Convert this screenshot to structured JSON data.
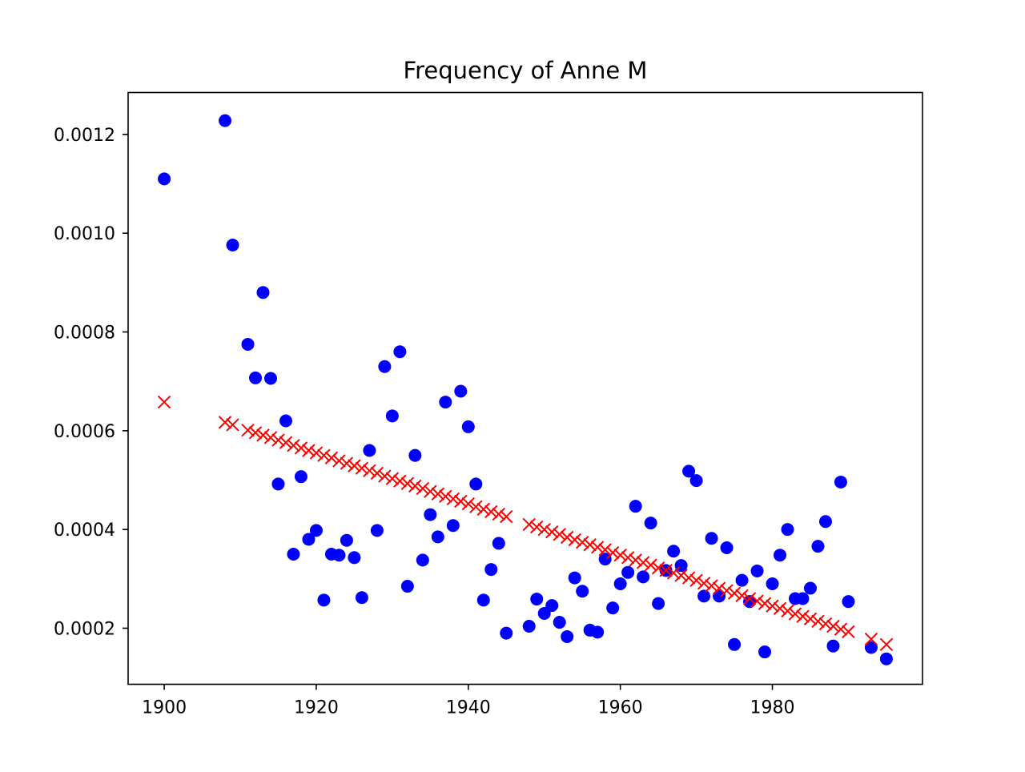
{
  "chart_data": {
    "type": "scatter",
    "title": "Frequency of Anne M",
    "xlabel": "",
    "ylabel": "",
    "xlim": [
      1895.25,
      1999.75
    ],
    "ylim": [
      8.64e-05,
      0.001285
    ],
    "grid": false,
    "legend": "none",
    "x_ticks": [
      1900,
      1920,
      1940,
      1960,
      1980
    ],
    "x_tick_labels": [
      "1900",
      "1920",
      "1940",
      "1960",
      "1980"
    ],
    "y_ticks": [
      0.0002,
      0.0004,
      0.0006,
      0.0008,
      0.001,
      0.0012
    ],
    "y_tick_labels": [
      "0.0002",
      "0.0004",
      "0.0006",
      "0.0008",
      "0.0010",
      "0.0012"
    ],
    "series": [
      {
        "marker": "circle",
        "color": "#0000ff",
        "points": [
          [
            1900,
            0.00111
          ],
          [
            1908,
            0.001228
          ],
          [
            1909,
            0.000976
          ],
          [
            1911,
            0.000775
          ],
          [
            1912,
            0.000707
          ],
          [
            1913,
            0.00088
          ],
          [
            1914,
            0.000706
          ],
          [
            1915,
            0.000492
          ],
          [
            1916,
            0.00062
          ],
          [
            1917,
            0.00035
          ],
          [
            1918,
            0.000507
          ],
          [
            1919,
            0.00038
          ],
          [
            1920,
            0.000398
          ],
          [
            1921,
            0.000257
          ],
          [
            1922,
            0.00035
          ],
          [
            1923,
            0.000348
          ],
          [
            1924,
            0.000378
          ],
          [
            1925,
            0.000343
          ],
          [
            1926,
            0.000262
          ],
          [
            1927,
            0.00056
          ],
          [
            1928,
            0.000398
          ],
          [
            1929,
            0.00073
          ],
          [
            1930,
            0.00063
          ],
          [
            1931,
            0.00076
          ],
          [
            1932,
            0.000285
          ],
          [
            1933,
            0.00055
          ],
          [
            1934,
            0.000338
          ],
          [
            1935,
            0.00043
          ],
          [
            1936,
            0.000385
          ],
          [
            1937,
            0.000658
          ],
          [
            1938,
            0.000408
          ],
          [
            1939,
            0.00068
          ],
          [
            1940,
            0.000608
          ],
          [
            1941,
            0.000492
          ],
          [
            1942,
            0.000257
          ],
          [
            1943,
            0.000319
          ],
          [
            1944,
            0.000372
          ],
          [
            1945,
            0.00019
          ],
          [
            1948,
            0.000204
          ],
          [
            1949,
            0.000259
          ],
          [
            1950,
            0.00023
          ],
          [
            1951,
            0.000246
          ],
          [
            1952,
            0.000212
          ],
          [
            1953,
            0.000183
          ],
          [
            1954,
            0.000302
          ],
          [
            1955,
            0.000275
          ],
          [
            1956,
            0.000196
          ],
          [
            1957,
            0.000192
          ],
          [
            1958,
            0.00034
          ],
          [
            1959,
            0.000241
          ],
          [
            1960,
            0.00029
          ],
          [
            1961,
            0.000313
          ],
          [
            1962,
            0.000447
          ],
          [
            1963,
            0.000304
          ],
          [
            1964,
            0.000413
          ],
          [
            1965,
            0.00025
          ],
          [
            1966,
            0.000317
          ],
          [
            1967,
            0.000356
          ],
          [
            1968,
            0.000327
          ],
          [
            1969,
            0.000518
          ],
          [
            1970,
            0.000499
          ],
          [
            1971,
            0.000265
          ],
          [
            1972,
            0.000382
          ],
          [
            1973,
            0.000265
          ],
          [
            1974,
            0.000363
          ],
          [
            1975,
            0.000167
          ],
          [
            1976,
            0.000297
          ],
          [
            1977,
            0.000254
          ],
          [
            1978,
            0.000316
          ],
          [
            1979,
            0.000152
          ],
          [
            1980,
            0.00029
          ],
          [
            1981,
            0.000348
          ],
          [
            1982,
            0.0004
          ],
          [
            1983,
            0.00026
          ],
          [
            1984,
            0.00026
          ],
          [
            1985,
            0.000281
          ],
          [
            1986,
            0.000366
          ],
          [
            1987,
            0.000416
          ],
          [
            1988,
            0.000164
          ],
          [
            1989,
            0.000496
          ],
          [
            1990,
            0.000254
          ],
          [
            1993,
            0.000161
          ],
          [
            1995,
            0.000138
          ]
        ]
      },
      {
        "marker": "x",
        "color": "#ff0000",
        "points": [
          [
            1900,
            0.000658
          ],
          [
            1908,
            0.000617
          ],
          [
            1909,
            0.000612
          ],
          [
            1911,
            0.000601
          ],
          [
            1912,
            0.000596
          ],
          [
            1913,
            0.000591
          ],
          [
            1914,
            0.000586
          ],
          [
            1915,
            0.000581
          ],
          [
            1916,
            0.000576
          ],
          [
            1917,
            0.00057
          ],
          [
            1918,
            0.000565
          ],
          [
            1919,
            0.00056
          ],
          [
            1920,
            0.000555
          ],
          [
            1921,
            0.00055
          ],
          [
            1922,
            0.000545
          ],
          [
            1923,
            0.000539
          ],
          [
            1924,
            0.000534
          ],
          [
            1925,
            0.000529
          ],
          [
            1926,
            0.000524
          ],
          [
            1927,
            0.000519
          ],
          [
            1928,
            0.000514
          ],
          [
            1929,
            0.000508
          ],
          [
            1930,
            0.000503
          ],
          [
            1931,
            0.000498
          ],
          [
            1932,
            0.000493
          ],
          [
            1933,
            0.000488
          ],
          [
            1934,
            0.000483
          ],
          [
            1935,
            0.000477
          ],
          [
            1936,
            0.000472
          ],
          [
            1937,
            0.000467
          ],
          [
            1938,
            0.000462
          ],
          [
            1939,
            0.000457
          ],
          [
            1940,
            0.000452
          ],
          [
            1941,
            0.000446
          ],
          [
            1942,
            0.000441
          ],
          [
            1943,
            0.000436
          ],
          [
            1944,
            0.000431
          ],
          [
            1945,
            0.000426
          ],
          [
            1948,
            0.00041
          ],
          [
            1949,
            0.000405
          ],
          [
            1950,
            0.0004
          ],
          [
            1951,
            0.000395
          ],
          [
            1952,
            0.00039
          ],
          [
            1953,
            0.000384
          ],
          [
            1954,
            0.000379
          ],
          [
            1955,
            0.000374
          ],
          [
            1956,
            0.000369
          ],
          [
            1957,
            0.000364
          ],
          [
            1958,
            0.000359
          ],
          [
            1959,
            0.000353
          ],
          [
            1960,
            0.000348
          ],
          [
            1961,
            0.000343
          ],
          [
            1962,
            0.000338
          ],
          [
            1963,
            0.000333
          ],
          [
            1964,
            0.000328
          ],
          [
            1965,
            0.000322
          ],
          [
            1966,
            0.000317
          ],
          [
            1967,
            0.000312
          ],
          [
            1968,
            0.000307
          ],
          [
            1969,
            0.000302
          ],
          [
            1970,
            0.000297
          ],
          [
            1971,
            0.000291
          ],
          [
            1972,
            0.000286
          ],
          [
            1973,
            0.000281
          ],
          [
            1974,
            0.000276
          ],
          [
            1975,
            0.000271
          ],
          [
            1976,
            0.000266
          ],
          [
            1977,
            0.00026
          ],
          [
            1978,
            0.000255
          ],
          [
            1979,
            0.00025
          ],
          [
            1980,
            0.000245
          ],
          [
            1981,
            0.00024
          ],
          [
            1982,
            0.000235
          ],
          [
            1983,
            0.000229
          ],
          [
            1984,
            0.000224
          ],
          [
            1985,
            0.000219
          ],
          [
            1986,
            0.000214
          ],
          [
            1987,
            0.000209
          ],
          [
            1988,
            0.000204
          ],
          [
            1989,
            0.000198
          ],
          [
            1990,
            0.000193
          ],
          [
            1993,
            0.000178
          ],
          [
            1995,
            0.000167
          ]
        ]
      }
    ]
  }
}
